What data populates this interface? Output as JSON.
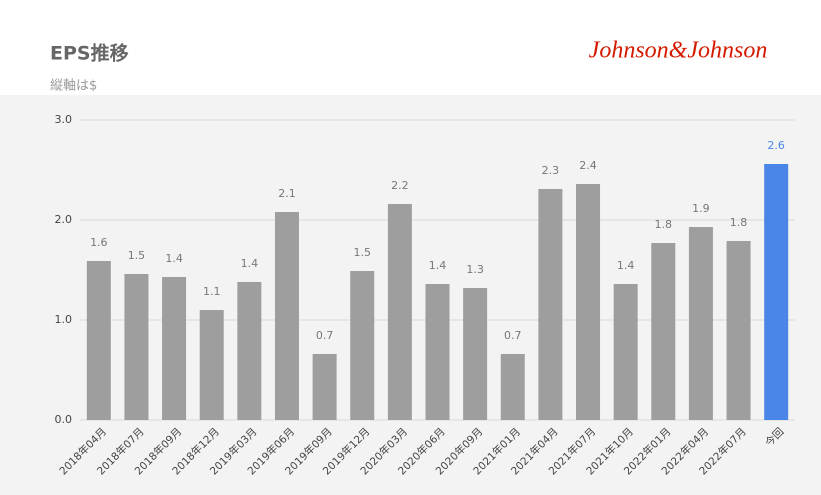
{
  "logo": "Johnson&Johnson",
  "chart_data": {
    "type": "bar",
    "title": "EPS推移",
    "subtitle": "縦軸は$",
    "categories": [
      "2018年04月",
      "2018年07月",
      "2018年09月",
      "2018年12月",
      "2019年03月",
      "2019年06月",
      "2019年09月",
      "2019年12月",
      "2020年03月",
      "2020年06月",
      "2020年09月",
      "2021年01月",
      "2021年04月",
      "2021年07月",
      "2021年10月",
      "2022年01月",
      "2022年04月",
      "2022年07月",
      "今回"
    ],
    "values": [
      1.59,
      1.46,
      1.43,
      1.1,
      1.38,
      2.08,
      0.66,
      1.49,
      2.16,
      1.36,
      1.32,
      0.66,
      2.31,
      2.36,
      1.36,
      1.77,
      1.93,
      1.79,
      2.56
    ],
    "value_labels": [
      "1.6",
      "1.5",
      "1.4",
      "1.1",
      "1.4",
      "2.1",
      "0.7",
      "1.5",
      "2.2",
      "1.4",
      "1.3",
      "0.7",
      "2.3",
      "2.4",
      "1.4",
      "1.8",
      "1.9",
      "1.8",
      "2.6"
    ],
    "colors": [
      "#9e9e9e",
      "#9e9e9e",
      "#9e9e9e",
      "#9e9e9e",
      "#9e9e9e",
      "#9e9e9e",
      "#9e9e9e",
      "#9e9e9e",
      "#9e9e9e",
      "#9e9e9e",
      "#9e9e9e",
      "#9e9e9e",
      "#9e9e9e",
      "#9e9e9e",
      "#9e9e9e",
      "#9e9e9e",
      "#9e9e9e",
      "#9e9e9e",
      "#4a86e8"
    ],
    "ylim": [
      0,
      3
    ],
    "yticks": [
      {
        "value": 0,
        "label": "0.0"
      },
      {
        "value": 1,
        "label": "1.0"
      },
      {
        "value": 2,
        "label": "2.0"
      },
      {
        "value": 3,
        "label": "3.0"
      }
    ],
    "grid": true
  }
}
